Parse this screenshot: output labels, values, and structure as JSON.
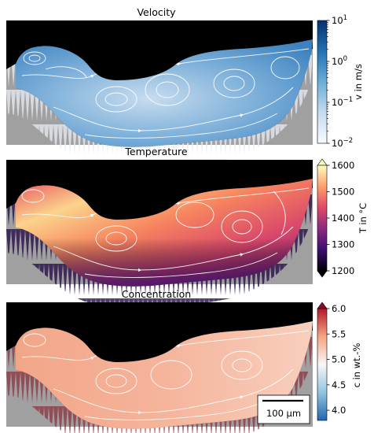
{
  "chart_data": [
    {
      "type": "heatmap",
      "title": "Velocity",
      "colorbar": {
        "label": "v in m/s",
        "scale": "log",
        "range": [
          0.01,
          10
        ],
        "colormap": "Blues",
        "ticks": [
          {
            "value": 10,
            "base": "10",
            "exp": "1"
          },
          {
            "value": 1,
            "base": "10",
            "exp": "0"
          },
          {
            "value": 0.1,
            "base": "10",
            "exp": "−1"
          },
          {
            "value": 0.01,
            "base": "10",
            "exp": "−2"
          }
        ]
      },
      "overlay": "streamlines"
    },
    {
      "type": "heatmap",
      "title": "Temperature",
      "colorbar": {
        "label": "T in °C",
        "scale": "linear",
        "range": [
          1200,
          1600
        ],
        "colormap": "magma",
        "extend": "both",
        "ticks": [
          {
            "value": 1600,
            "text": "1600"
          },
          {
            "value": 1500,
            "text": "1500"
          },
          {
            "value": 1400,
            "text": "1400"
          },
          {
            "value": 1300,
            "text": "1300"
          },
          {
            "value": 1200,
            "text": "1200"
          }
        ]
      },
      "overlay": "streamlines"
    },
    {
      "type": "heatmap",
      "title": "Concentration",
      "colorbar": {
        "label": "c in wt.-%",
        "scale": "linear",
        "range": [
          3.8,
          6.0
        ],
        "colormap": "RdBu_r",
        "extend": "max",
        "ticks": [
          {
            "value": 6.0,
            "text": "6.0"
          },
          {
            "value": 5.5,
            "text": "5.5"
          },
          {
            "value": 5.0,
            "text": "5.0"
          },
          {
            "value": 4.5,
            "text": "4.5"
          },
          {
            "value": 4.0,
            "text": "4.0"
          }
        ]
      },
      "overlay": "streamlines",
      "scalebar": {
        "label": "100 µm"
      }
    }
  ],
  "colors": {
    "background_region": "#000000",
    "solid_region": "#a0a0a0",
    "streamline": "#ffffff"
  }
}
